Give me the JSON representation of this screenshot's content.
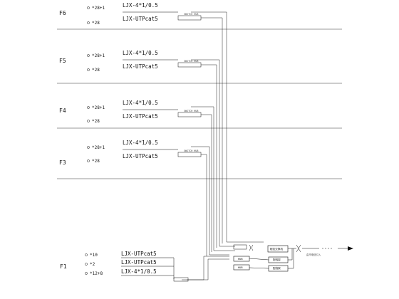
{
  "floors": [
    {
      "id": "F6",
      "label": "F6",
      "code_a": "*28+1",
      "code_b": "*28",
      "cable_a": "LJX-4*1/0.5",
      "cable_b": "LJX-UTPcat5",
      "switch_label": "SWITCH HUB"
    },
    {
      "id": "F5",
      "label": "F5",
      "code_a": "*28+1",
      "code_b": "*28",
      "cable_a": "LJX-4*1/0.5",
      "cable_b": "LJX-UTPcat5",
      "switch_label": "SWITCH HUB"
    },
    {
      "id": "F4",
      "label": "F4",
      "code_a": "*28+1",
      "code_b": "*28",
      "cable_a": "LJX-4*1/0.5",
      "cable_b": "LJX-UTPcat5",
      "switch_label": "SWITCH HUB"
    },
    {
      "id": "F3",
      "label": "F3",
      "code_a": "*28+1",
      "code_b": "*28",
      "cable_a": "LJX-4*1/0.5",
      "cable_b": "LJX-UTPcat5",
      "switch_label": "SWITCH HUB"
    }
  ],
  "floor1": {
    "label": "F1",
    "codes": [
      "*10",
      "*2",
      "*12+8"
    ],
    "cables": [
      "LJX-UTPcat5",
      "LJX-UTPcat5",
      "LJX-4*1/0.5"
    ]
  },
  "equipment": {
    "box1": "程控交换机",
    "box2": "HUB",
    "box3": "HUB",
    "box4": "配线架",
    "box5": "配线架",
    "outside_label": "由市电信引入"
  }
}
